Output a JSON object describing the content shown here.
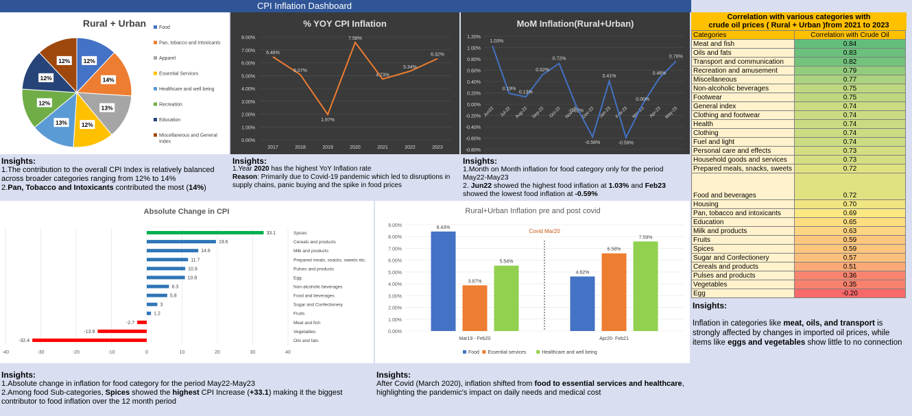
{
  "dashboard_title": "CPI Inflation Dashboard",
  "pie": {
    "title": "Rural + Urban",
    "legend": [
      "Food",
      "Pan, tobacco and intoxicants",
      "Apparel",
      "Essential Services",
      "Healthcare and well being",
      "Recreation",
      "Education",
      "Miscellaneous and General Index"
    ],
    "colors": [
      "#4472c4",
      "#ed7d31",
      "#a5a5a5",
      "#ffc000",
      "#5b9bd5",
      "#70ad47",
      "#264478",
      "#9e480e"
    ],
    "values": [
      12,
      14,
      13,
      12,
      13,
      12,
      12,
      12
    ],
    "labels": [
      "12%",
      "14%",
      "13%",
      "12%",
      "13%",
      "12%",
      "12%",
      "12%"
    ]
  },
  "yoy": {
    "title": "% YOY CPI Inflation",
    "years": [
      "2017",
      "2018",
      "2019",
      "2020",
      "2021",
      "2022",
      "2023"
    ],
    "values": [
      6.46,
      5.07,
      1.97,
      7.58,
      4.73,
      5.34,
      6.32
    ],
    "labels": [
      "6.46%",
      "5.07%",
      "1.97%",
      "7.58%",
      "4.73%",
      "5.34%",
      "6.32%"
    ],
    "yticks": [
      "0.00%",
      "1.00%",
      "2.00%",
      "3.00%",
      "4.00%",
      "5.00%",
      "6.00%",
      "7.00%",
      "8.00%"
    ],
    "ylim": [
      0,
      8
    ]
  },
  "mom": {
    "title": "MoM Inflation(Rural+Urban)",
    "months": [
      "Jun22",
      "Jul-22",
      "Aug-22",
      "Sep-22",
      "Oct-22",
      "Nov-22",
      "Dec-22",
      "Jan-23",
      "Feb-23",
      "Mar-23",
      "Apr-23",
      "May-23"
    ],
    "values": [
      1.03,
      0.19,
      0.13,
      0.52,
      0.72,
      -0.02,
      -0.58,
      0.41,
      -0.59,
      0.0,
      0.46,
      0.76
    ],
    "labels": [
      "1.03%",
      "0.19%",
      "0.13%",
      "0.52%",
      "0.72%",
      "-0.02%",
      "-0.58%",
      "0.41%",
      "-0.59%",
      "0.00%",
      "0.46%",
      "0.76%"
    ],
    "yticks": [
      "-0.80%",
      "-0.60%",
      "-0.40%",
      "-0.20%",
      "0.00%",
      "0.20%",
      "0.40%",
      "0.60%",
      "0.80%",
      "1.00%",
      "1.20%"
    ],
    "ylim": [
      -0.8,
      1.2
    ]
  },
  "abs_change": {
    "title": "Absolute Change in CPI",
    "categories": [
      "Spices",
      "Cereals and products",
      "Milk and products",
      "Prepared meals, snacks, sweets etc.",
      "Pulses and products",
      "Egg",
      "Non-alcoholic beverages",
      "Food and beverages",
      "Sugar and Confectionery",
      "Fruits",
      "Meat and fish",
      "Vegetables",
      "Oils and fats"
    ],
    "values": [
      33.1,
      19.6,
      14.6,
      11.7,
      10.9,
      10.8,
      6.3,
      5.8,
      3,
      1.2,
      -2.7,
      -13.9,
      -32.4
    ],
    "labels": [
      "33.1",
      "19.6",
      "14.6",
      "11.7",
      "10.9",
      "10.8",
      "6.3",
      "5.8",
      "3",
      "1.2",
      "-2.7",
      "-13.9",
      "-32.4"
    ],
    "colors": [
      "#00b050",
      "#2e75b6",
      "#2e75b6",
      "#2e75b6",
      "#2e75b6",
      "#2e75b6",
      "#2e75b6",
      "#2e75b6",
      "#2e75b6",
      "#2e75b6",
      "#ff0000",
      "#ff0000",
      "#ff0000"
    ],
    "xticks": [
      "-40",
      "-30",
      "-20",
      "-10",
      "0",
      "10",
      "20",
      "30",
      "40"
    ],
    "xlim": [
      -40,
      40
    ]
  },
  "covid": {
    "title": "Rural+Urban Inflation pre and post covid",
    "annotation": "Covid Mar20",
    "groups": [
      "Mar19 - Feb20",
      "Apr20-  Feb21"
    ],
    "series": [
      {
        "name": "Food",
        "color": "#4472c4",
        "values": [
          8.43,
          4.62
        ],
        "labels": [
          "8.43%",
          "4.62%"
        ]
      },
      {
        "name": "Essential services",
        "color": "#ed7d31",
        "values": [
          3.87,
          6.58
        ],
        "labels": [
          "3.87%",
          "6.58%"
        ]
      },
      {
        "name": "Healthcare and well being",
        "color": "#92d050",
        "values": [
          5.54,
          7.59
        ],
        "labels": [
          "5.54%",
          "7.59%"
        ]
      }
    ],
    "yticks": [
      "0.00%",
      "1.00%",
      "2.00%",
      "3.00%",
      "4.00%",
      "5.00%",
      "6.00%",
      "7.00%",
      "8.00%",
      "9.00%"
    ],
    "ylim": [
      0,
      9
    ]
  },
  "corr": {
    "title_line1": "Correlation with various categories with",
    "title_line2": "crude oil prices ( Rural + Urban )from 2021 to 2023",
    "header_cat": "Categories",
    "header_val": "Correlation with Crude Oil",
    "rows": [
      {
        "cat": "Meat and fish",
        "val": "0.84",
        "color": "#63be7b"
      },
      {
        "cat": "Oils and fats",
        "val": "0.83",
        "color": "#6bc07b"
      },
      {
        "cat": "Transport and communication",
        "val": "0.82",
        "color": "#73c37c"
      },
      {
        "cat": "Recreation and amusement",
        "val": "0.79",
        "color": "#94cc7e"
      },
      {
        "cat": "Miscellaneous",
        "val": "0.77",
        "color": "#aad27f"
      },
      {
        "cat": "Non-alcoholic beverages",
        "val": "0.75",
        "color": "#bfd880"
      },
      {
        "cat": "Footwear",
        "val": "0.75",
        "color": "#bfd880"
      },
      {
        "cat": "General index",
        "val": "0.74",
        "color": "#cadc81"
      },
      {
        "cat": "Clothing and footwear",
        "val": "0.74",
        "color": "#cadc81"
      },
      {
        "cat": "Health",
        "val": "0.74",
        "color": "#cadc81"
      },
      {
        "cat": "Clothing",
        "val": "0.74",
        "color": "#cadc81"
      },
      {
        "cat": "Fuel and light",
        "val": "0.74",
        "color": "#cadc81"
      },
      {
        "cat": "Personal care and effects",
        "val": "0.73",
        "color": "#d5df82"
      },
      {
        "cat": "Household goods and services",
        "val": "0.73",
        "color": "#d5df82"
      },
      {
        "cat": "Prepared meals, snacks, sweets",
        "val": "0.72",
        "color": "#e0e282"
      },
      {
        "cat": "Food and beverages",
        "val": "0.72",
        "color": "#e0e282",
        "tall": true
      },
      {
        "cat": "Housing",
        "val": "0.70",
        "color": "#f0e583"
      },
      {
        "cat": "Pan, tobacco and intoxicants",
        "val": "0.69",
        "color": "#fbe883"
      },
      {
        "cat": "Education",
        "val": "0.65",
        "color": "#fedd81"
      },
      {
        "cat": "Milk and products",
        "val": "0.63",
        "color": "#fed580"
      },
      {
        "cat": "Fruits",
        "val": "0.59",
        "color": "#fdc67d"
      },
      {
        "cat": "Spices",
        "val": "0.59",
        "color": "#fdc67d"
      },
      {
        "cat": "Sugar and Confectionery",
        "val": "0.57",
        "color": "#fcbf7b"
      },
      {
        "cat": "Cereals and products",
        "val": "0.51",
        "color": "#fbaa77"
      },
      {
        "cat": "Pulses and products",
        "val": "0.36",
        "color": "#f98570"
      },
      {
        "cat": "Vegetables",
        "val": "0.35",
        "color": "#f9826f"
      },
      {
        "cat": "Egg",
        "val": "-0.20",
        "color": "#f8696b"
      }
    ]
  },
  "insights": {
    "heading": "Insights:",
    "pie_1": "1.The contribution to the overall CPI Index is relatively balanced across broader categories ranging from 12% to 14%",
    "pie_2a": "2.",
    "pie_2b": "Pan, Tobacco and Intoxicants",
    "pie_2c": " contributed the most (",
    "pie_2d": "14%",
    "pie_2e": ")",
    "yoy_1a": "1.Year ",
    "yoy_1b": "2020",
    "yoy_1c": " has the highest YoY Inflation rate",
    "yoy_2a": "Reason",
    "yoy_2b": ": Primarily due to Covid-19 pandemic which led to disruptions in supply chains, panic buying and the spike in food prices",
    "mom_1": "1.Month on Month inflation for food category only for the period May22-May23",
    "mom_2a": "2. ",
    "mom_2b": "Jun22",
    "mom_2c": " showed the highest food inflation at ",
    "mom_2d": "1.03%",
    "mom_2e": " and ",
    "mom_2f": "Feb23",
    "mom_2g": " showed the lowest food inflation at ",
    "mom_2h": "-0.59%",
    "abs_1": "1.Absolute change in inflation for food category for the period May22-May23",
    "abs_2a": "2.Among food Sub-categories, ",
    "abs_2b": "Spices",
    "abs_2c": " showed the ",
    "abs_2d": "highest",
    "abs_2e": " CPI Increase (",
    "abs_2f": "+33.1",
    "abs_2g": ") making it the biggest contributor to food inflation over the 12 month period",
    "cov_1a": "After Covid (March 2020), inflation shifted from ",
    "cov_1b": "food to essential services and healthcare",
    "cov_1c": ", highlighting the pandemic's impact on daily needs and medical cost",
    "corr_1a": "Inflation in categories like ",
    "corr_1b": "meat, oils, and transport",
    "corr_1c": " is strongly affected by changes in imported oil prices, while items like ",
    "corr_1d": "eggs and vegetables",
    "corr_1e": " show little to no connection"
  }
}
